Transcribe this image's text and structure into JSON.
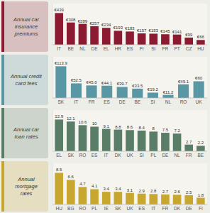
{
  "chart_data": [
    {
      "type": "bar",
      "title": "Annual car\ninsurance\npremiums",
      "categories": [
        "IT",
        "BE",
        "NL",
        "DE",
        "EL",
        "HR",
        "ES",
        "FI",
        "SI",
        "FR",
        "PT",
        "CZ",
        "HU"
      ],
      "values": [
        439,
        308,
        289,
        257,
        234,
        193,
        183,
        157,
        153,
        145,
        141,
        99,
        66
      ],
      "value_labels": [
        "€439",
        "€308",
        "€289",
        "€257",
        "€234",
        "€193",
        "€183",
        "€157",
        "€153",
        "€145",
        "€141",
        "€99",
        "€66"
      ],
      "color": "#8C1A30",
      "ylim": [
        0,
        570.7
      ],
      "data_labels": true,
      "tick_labels": "x",
      "grid": false
    },
    {
      "type": "bar",
      "title": "Annual credit\ncard fees",
      "categories": [
        "SK",
        "IT",
        "FR",
        "ES",
        "DE",
        "BE",
        "SI",
        "NL",
        "RO",
        "UK"
      ],
      "values": [
        113.9,
        52.5,
        45.0,
        44.1,
        39.7,
        33.5,
        19.2,
        11.2,
        49.1,
        60
      ],
      "value_labels": [
        "€113.9",
        "€52.5",
        "€45.0",
        "€44.1",
        "€39.7",
        "€33.5",
        "€19.2",
        "€11.2",
        "€49.1",
        "€60"
      ],
      "color": "#5A97A5",
      "ylim": [
        0,
        148.07
      ],
      "data_labels": true,
      "tick_labels": "x",
      "grid": false
    },
    {
      "type": "bar",
      "title": "Annual car\nloan rates",
      "categories": [
        "EL",
        "SK",
        "RO",
        "ES",
        "IT",
        "DK",
        "UK",
        "SI",
        "PL",
        "DE",
        "NL",
        "FR",
        "BE"
      ],
      "values": [
        12.9,
        12.1,
        10.6,
        10.0,
        9.1,
        8.8,
        8.6,
        8.4,
        8.0,
        7.5,
        7.2,
        2.7,
        2.2
      ],
      "color": "#5A7D68",
      "ylim": [
        0,
        16.77
      ],
      "data_labels": true,
      "tick_labels": "x",
      "grid": false
    },
    {
      "type": "bar",
      "title": "Annual\nmortgage\nrates",
      "categories": [
        "HU",
        "BG",
        "RO",
        "PL",
        "IE",
        "SK",
        "UK",
        "ES",
        "IT",
        "FR",
        "DK",
        "DE",
        "FI"
      ],
      "values": [
        8.5,
        6.6,
        4.7,
        4.1,
        3.4,
        3.4,
        3.1,
        2.9,
        2.8,
        2.7,
        2.6,
        2.5,
        1.8
      ],
      "color": "#C8A730",
      "ylim": [
        0,
        11.05
      ],
      "data_labels": true,
      "tick_labels": "x",
      "grid": false
    }
  ]
}
